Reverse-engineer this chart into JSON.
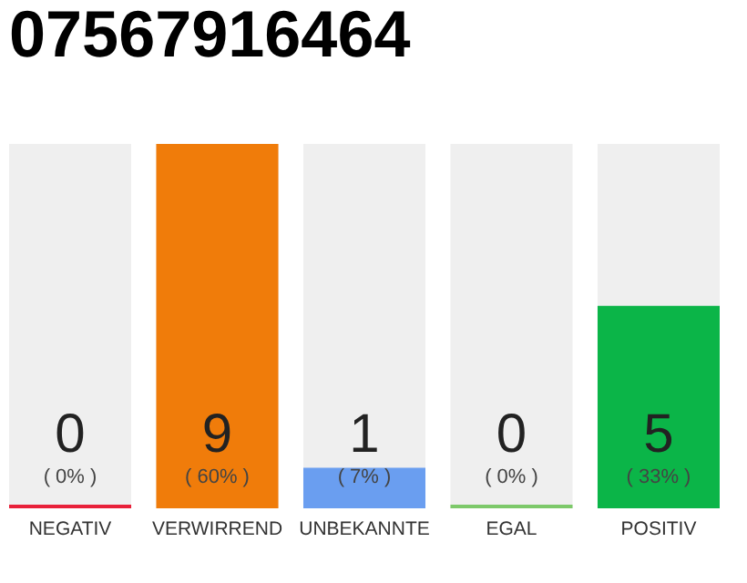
{
  "chart_data": {
    "type": "bar",
    "title": "07567916464",
    "categories": [
      "NEGATIV",
      "VERWIRREND",
      "UNBEKANNTE",
      "EGAL",
      "POSITIV"
    ],
    "values": [
      0,
      9,
      1,
      0,
      5
    ],
    "colors": [
      "#e8213a",
      "#f07c0a",
      "#6a9ef0",
      "#7dc96a",
      "#0bb548"
    ],
    "data_labels": true,
    "annotations": [
      "( 0% )",
      "( 60% )",
      "( 7% )",
      "( 0% )",
      "( 33% )"
    ],
    "grid": false
  }
}
